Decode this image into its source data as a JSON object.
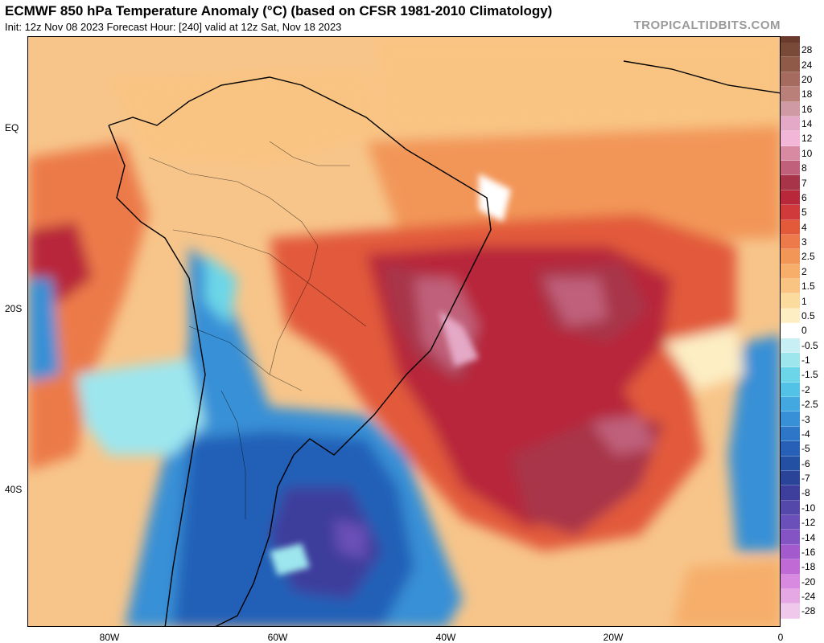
{
  "header": {
    "title": "ECMWF 850 hPa Temperature Anomaly (°C) (based on CFSR 1981-2010 Climatology)",
    "subtitle": "Init: 12z Nov 08 2023   Forecast Hour: [240]   valid at 12z Sat, Nov 18 2023",
    "brand": "TROPICALTIDBITS.COM"
  },
  "axes": {
    "lat_labels": [
      "EQ",
      "20S",
      "40S"
    ],
    "lon_labels": [
      "80W",
      "60W",
      "40W",
      "20W",
      "0"
    ]
  },
  "colorbar": {
    "labels": [
      "28",
      "24",
      "20",
      "18",
      "16",
      "14",
      "12",
      "10",
      "8",
      "7",
      "6",
      "5",
      "4",
      "3",
      "2.5",
      "2",
      "1.5",
      "1",
      "0.5",
      "0",
      "-0.5",
      "-1",
      "-1.5",
      "-2",
      "-2.5",
      "-3",
      "-4",
      "-5",
      "-6",
      "-7",
      "-8",
      "-10",
      "-12",
      "-14",
      "-16",
      "-18",
      "-20",
      "-24",
      "-28"
    ],
    "colors": [
      "#7a4a38",
      "#8f5a48",
      "#a56b5e",
      "#b9807a",
      "#d09aa5",
      "#e4a9c6",
      "#f2b6d8",
      "#d98aa3",
      "#c0607a",
      "#a8344a",
      "#b8283a",
      "#d03a3a",
      "#e25a3a",
      "#ec7a4a",
      "#f29658",
      "#f6ae6a",
      "#f9c482",
      "#fbdc9e",
      "#fdeec4",
      "#ffffff",
      "#c8f0f4",
      "#9de6ee",
      "#6cd6e8",
      "#52c2e6",
      "#44a8e0",
      "#3890d6",
      "#2e76c8",
      "#2860b8",
      "#2450a4",
      "#2a4498",
      "#3e3e9c",
      "#5448aa",
      "#6a50b8",
      "#8454c4",
      "#a25acc",
      "#c06ad6",
      "#d88ae0",
      "#e6a8e4",
      "#f0c8ec"
    ]
  },
  "colors": {
    "ocean_base": "#f7c58a",
    "warm_core": "#a8344a",
    "cold_core": "#2860b8",
    "brand_gray": "#9a9a9a"
  }
}
